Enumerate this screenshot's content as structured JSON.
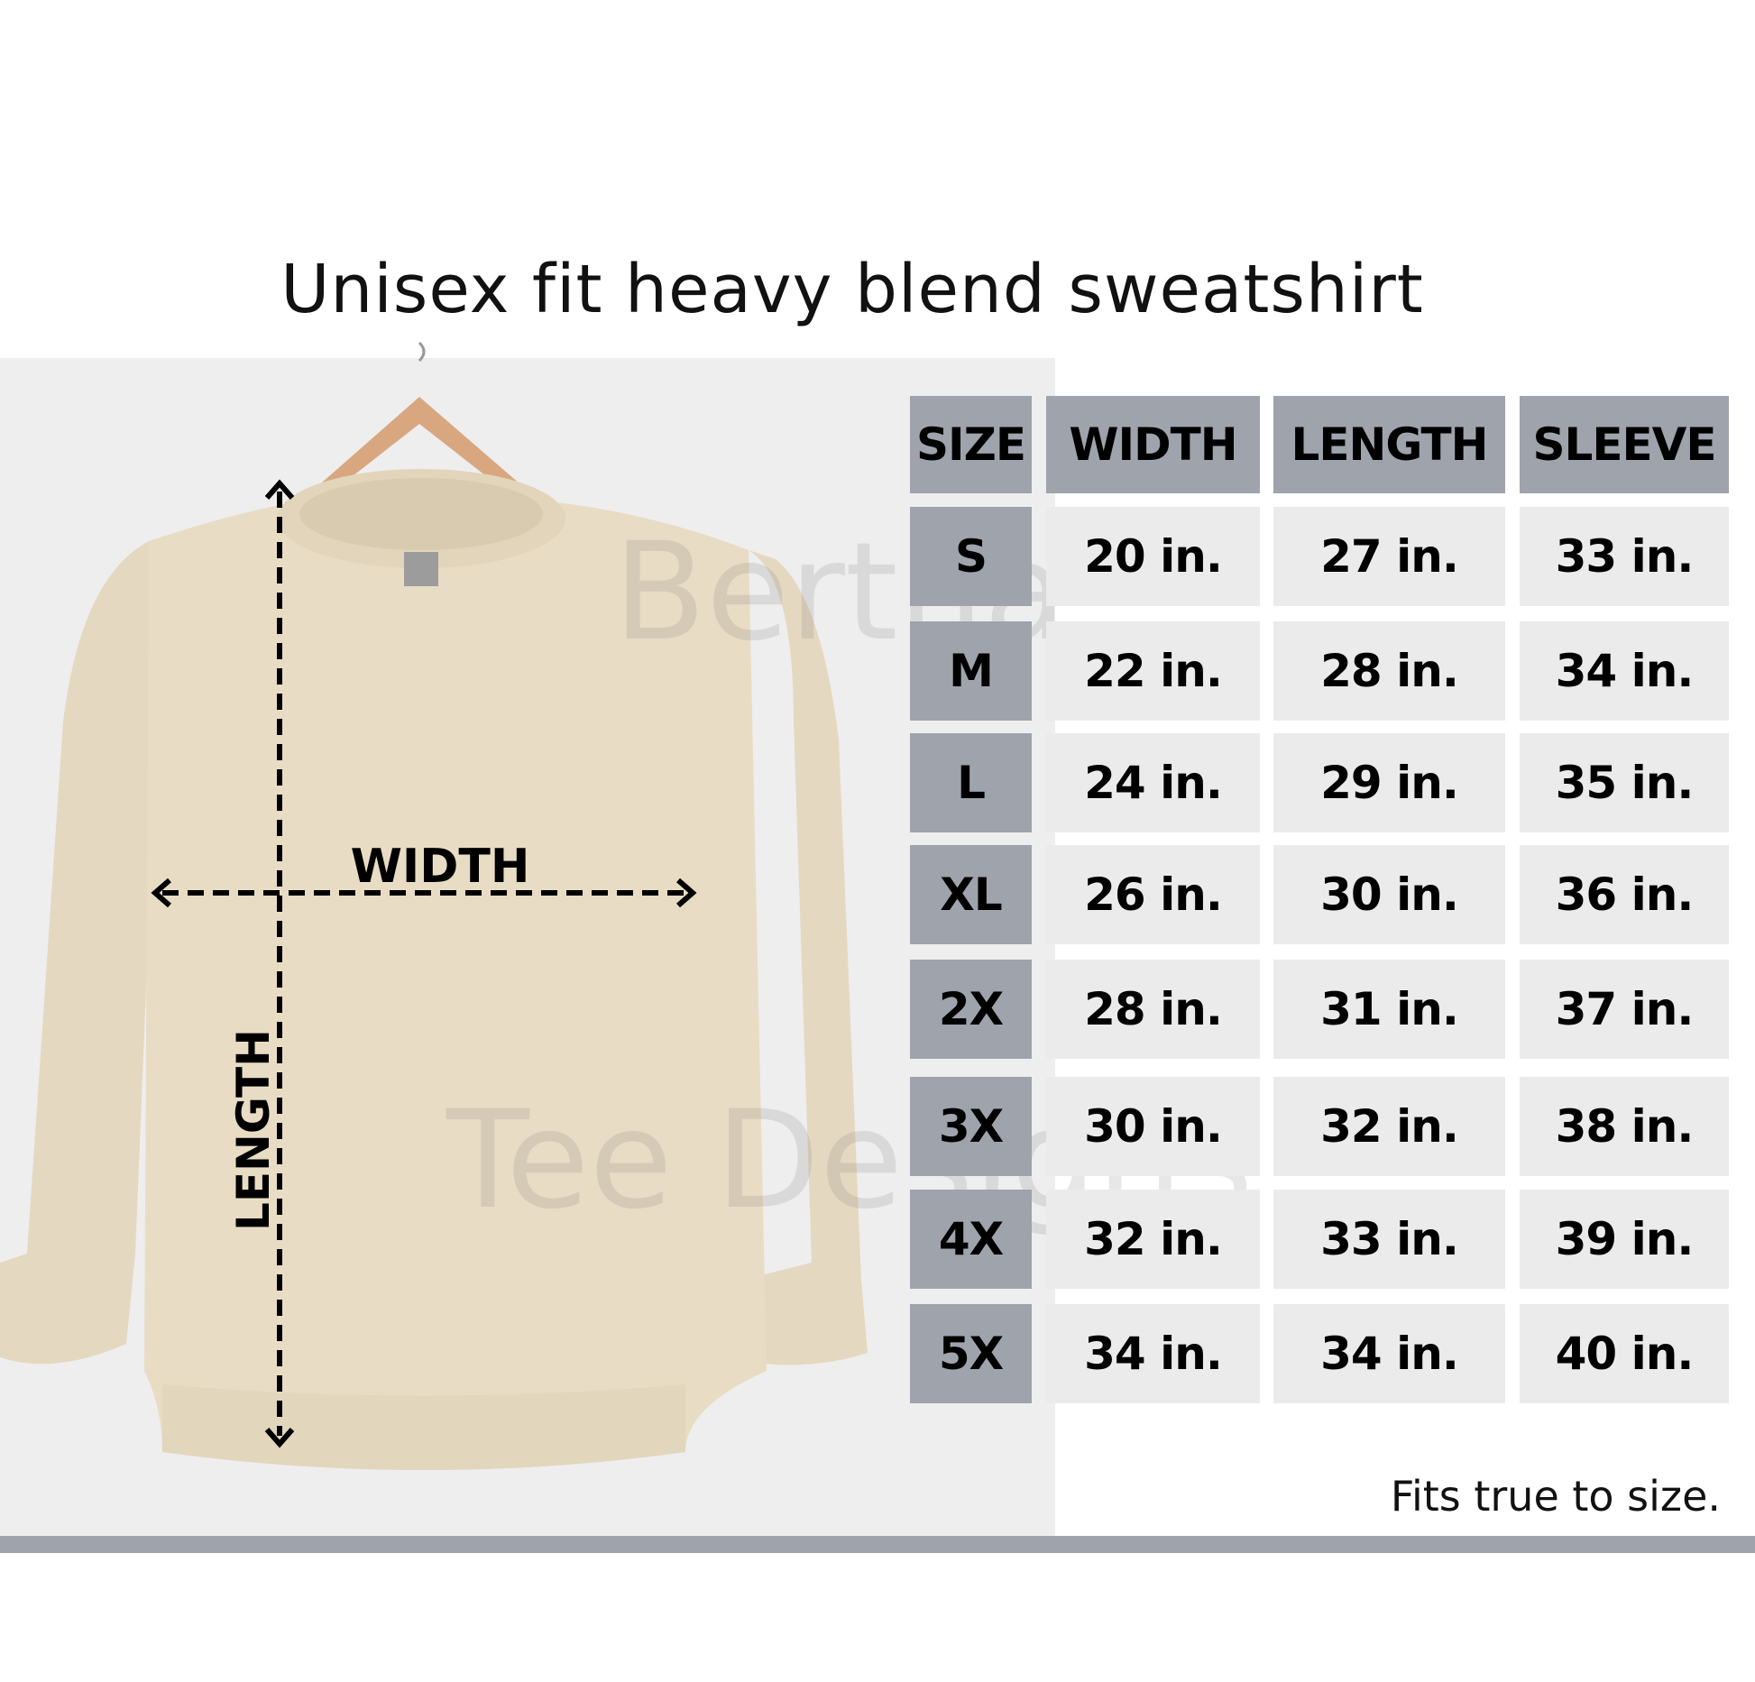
{
  "title": "Unisex fit heavy blend sweatshirt",
  "diagram": {
    "width_label": "WIDTH",
    "length_label": "LENGTH",
    "garment_color": "#e8dcc4"
  },
  "watermark": {
    "line1": "Bertha",
    "line2": "Tee Designs"
  },
  "table": {
    "headers": [
      "SIZE",
      "WIDTH",
      "LENGTH",
      "SLEEVE"
    ],
    "rows": [
      [
        "S",
        "20 in.",
        "27 in.",
        "33 in."
      ],
      [
        "M",
        "22 in.",
        "28 in.",
        "34 in."
      ],
      [
        "L",
        "24 in.",
        "29 in.",
        "35 in."
      ],
      [
        "XL",
        "26 in.",
        "30 in.",
        "36 in."
      ],
      [
        "2X",
        "28 in.",
        "31 in.",
        "37 in."
      ],
      [
        "3X",
        "30 in.",
        "32 in.",
        "38 in."
      ],
      [
        "4X",
        "32 in.",
        "33 in.",
        "39 in."
      ],
      [
        "5X",
        "34 in.",
        "34 in.",
        "40 in."
      ]
    ],
    "header_color": "#9ea3ac",
    "cell_color": "#ebebeb"
  },
  "footer": "Fits true to size."
}
